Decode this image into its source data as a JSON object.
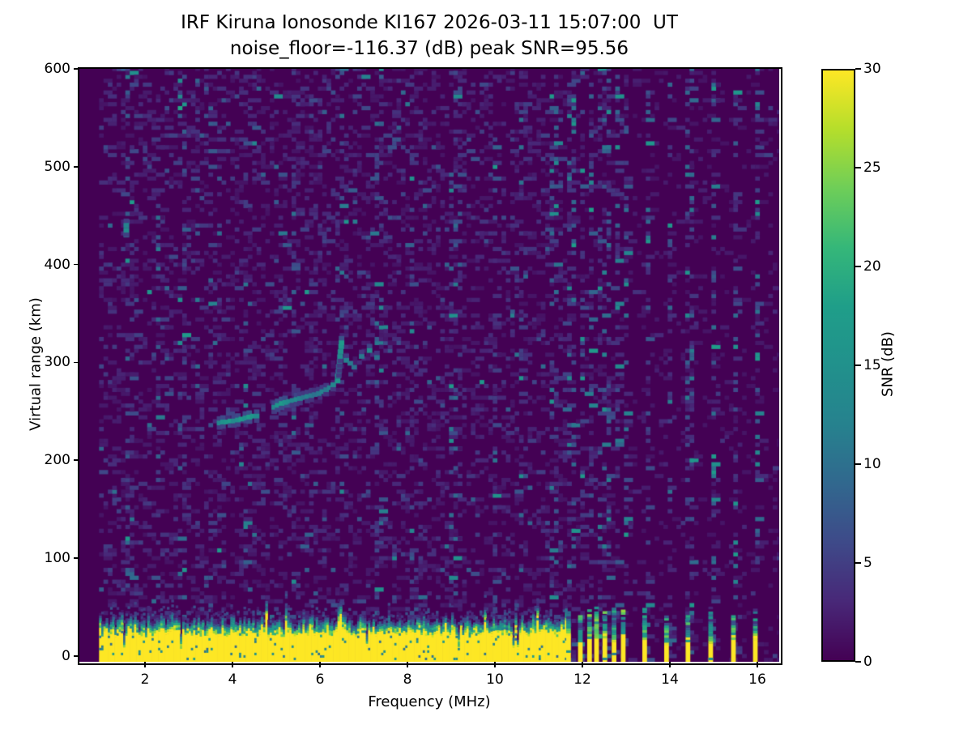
{
  "figure": {
    "title_line1": "IRF Kiruna Ionosonde KI167 2026-03-11 15:07:00  UT",
    "title_line2": "noise_floor=-116.37 (dB) peak SNR=95.56"
  },
  "chart_data": {
    "type": "heatmap",
    "title": "IRF Kiruna Ionosonde KI167 2026-03-11 15:07:00  UT",
    "subtitle": "noise_floor=-116.37 (dB) peak SNR=95.56",
    "station": "KI167",
    "datetime_ut": "2026-03-11 15:07:00",
    "noise_floor_db": -116.37,
    "peak_snr_db": 95.56,
    "xlabel": "Frequency (MHz)",
    "ylabel": "Virtual range (km)",
    "xlim": [
      0.5,
      16.5
    ],
    "ylim": [
      -6,
      600
    ],
    "xticks": [
      2,
      4,
      6,
      8,
      10,
      12,
      14,
      16
    ],
    "yticks": [
      0,
      100,
      200,
      300,
      400,
      500,
      600
    ],
    "grid": false,
    "colormap": "viridis",
    "legend_position": "right",
    "colorbar": {
      "label": "SNR (dB)",
      "min": 0,
      "max": 30,
      "ticks": [
        0,
        5,
        10,
        15,
        20,
        25,
        30
      ]
    },
    "sweep": {
      "start_mhz": 0.95,
      "continuous_end_mhz": 11.62,
      "discrete_frequencies_mhz": [
        11.68,
        11.95,
        12.16,
        12.32,
        12.51,
        12.72,
        12.93,
        13.42,
        13.92,
        14.41,
        14.93,
        15.45,
        15.95
      ]
    },
    "ground_pulse_band": {
      "snr_db": 30,
      "solid_top_km_typical": 24,
      "ragged_top_km_max": 42
    },
    "rfi_noise_columns_mhz": [
      1.6,
      2.25,
      2.8,
      3.45,
      4.25,
      5.35,
      6.42,
      7.3,
      8.05,
      9.0,
      9.95,
      10.55,
      11.3
    ],
    "echo_trace_points": [
      [
        3.7,
        236,
        13
      ],
      [
        3.78,
        237,
        15
      ],
      [
        3.86,
        237,
        16
      ],
      [
        3.95,
        238,
        17
      ],
      [
        4.03,
        238,
        14
      ],
      [
        4.12,
        239,
        15
      ],
      [
        4.2,
        240,
        17
      ],
      [
        4.29,
        241,
        15
      ],
      [
        4.38,
        242,
        18
      ],
      [
        4.46,
        243,
        16
      ],
      [
        4.55,
        243,
        14
      ],
      [
        4.95,
        252,
        13
      ],
      [
        5.03,
        254,
        16
      ],
      [
        5.12,
        256,
        17
      ],
      [
        5.2,
        257,
        15
      ],
      [
        5.29,
        258,
        14
      ],
      [
        5.37,
        259,
        13
      ],
      [
        5.46,
        260,
        14
      ],
      [
        5.54,
        261,
        12
      ],
      [
        5.63,
        262,
        11
      ],
      [
        5.71,
        263,
        12
      ],
      [
        5.8,
        264,
        11
      ],
      [
        5.88,
        265,
        10
      ],
      [
        5.97,
        266,
        11
      ],
      [
        6.05,
        268,
        12
      ],
      [
        6.14,
        270,
        11
      ],
      [
        6.22,
        272,
        12
      ],
      [
        6.3,
        275,
        13
      ],
      [
        6.4,
        279,
        16
      ],
      [
        6.41,
        284,
        14
      ],
      [
        6.43,
        289,
        13
      ],
      [
        6.44,
        294,
        12
      ],
      [
        6.45,
        299,
        13
      ],
      [
        6.46,
        304,
        14
      ],
      [
        6.47,
        309,
        15
      ],
      [
        6.48,
        314,
        16
      ],
      [
        6.49,
        318,
        17
      ],
      [
        6.6,
        300,
        12
      ],
      [
        6.69,
        297,
        11
      ],
      [
        6.78,
        293,
        10
      ],
      [
        6.95,
        304,
        11
      ],
      [
        7.13,
        310,
        14
      ],
      [
        7.3,
        303,
        10
      ],
      [
        1.57,
        428,
        12
      ],
      [
        1.57,
        433,
        14
      ],
      [
        1.57,
        438,
        12
      ]
    ]
  }
}
